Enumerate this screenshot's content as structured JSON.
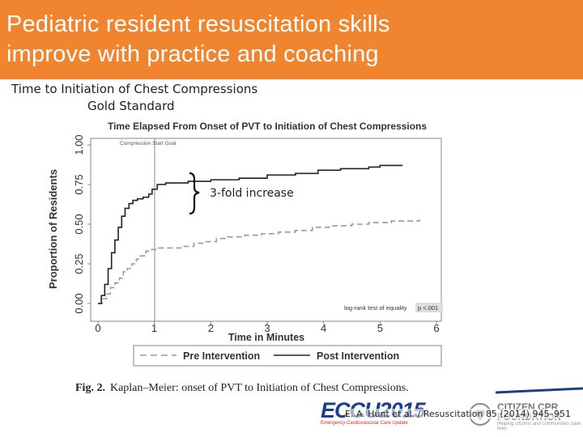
{
  "slide": {
    "title_line1": "Pediatric resident resuscitation skills",
    "title_line2": "improve with practice and coaching",
    "subtitle_line1": "Time to Initiation of Chest Compressions",
    "subtitle_line2": "Gold Standard",
    "annotation": "3-fold increase",
    "caption_label": "Fig. 2.",
    "caption_text": "Kaplan–Meier: onset of PVT to Initiation of Chest Compressions.",
    "citation": "E. A. Hunt et al. / Resuscitation 85 (2014) 945–951",
    "logo_ecc": "ECCU2015",
    "logo_ecc_sub": "Emergency Cardiovascular Care Update",
    "logo_cpr_line1": "CITIZEN CPR",
    "logo_cpr_line2": "FOUNDATION",
    "logo_cpr_sub": "Helping citizens and communities save lives",
    "colors": {
      "title_bar": "#f0842f",
      "title_text": "#ffffff"
    }
  },
  "chart_data": {
    "type": "line",
    "title": "Time Elapsed From Onset of PVT to Initiation of Chest Compressions",
    "xlabel": "Time in Minutes",
    "ylabel": "Proportion of Residents",
    "xlim": [
      0,
      6
    ],
    "ylim": [
      0,
      1
    ],
    "x_ticks": [
      "0",
      "1",
      "2",
      "3",
      "4",
      "5",
      "6"
    ],
    "y_ticks": [
      "0.00",
      "0.25",
      "0.50",
      "0.75",
      "1.00"
    ],
    "reference_line": {
      "x": 1,
      "label": "Compression Start Goal"
    },
    "stat_label": "log-rank test of equality",
    "stat_value": "p <.001",
    "legend_position": "bottom",
    "series": [
      {
        "name": "Pre Intervention",
        "style": "dashed",
        "color": "#9a9a9a",
        "points": [
          [
            0.0,
            0.0
          ],
          [
            0.08,
            0.03
          ],
          [
            0.15,
            0.06
          ],
          [
            0.22,
            0.1
          ],
          [
            0.3,
            0.13
          ],
          [
            0.38,
            0.16
          ],
          [
            0.45,
            0.2
          ],
          [
            0.52,
            0.22
          ],
          [
            0.6,
            0.25
          ],
          [
            0.68,
            0.28
          ],
          [
            0.75,
            0.3
          ],
          [
            0.85,
            0.33
          ],
          [
            0.95,
            0.34
          ],
          [
            1.05,
            0.35
          ],
          [
            1.3,
            0.35
          ],
          [
            1.5,
            0.36
          ],
          [
            1.7,
            0.38
          ],
          [
            1.9,
            0.39
          ],
          [
            2.1,
            0.41
          ],
          [
            2.3,
            0.42
          ],
          [
            2.6,
            0.43
          ],
          [
            2.9,
            0.44
          ],
          [
            3.2,
            0.45
          ],
          [
            3.5,
            0.46
          ],
          [
            3.8,
            0.48
          ],
          [
            4.1,
            0.49
          ],
          [
            4.5,
            0.5
          ],
          [
            4.8,
            0.51
          ],
          [
            5.2,
            0.52
          ],
          [
            5.7,
            0.53
          ],
          [
            5.7,
            0.53
          ]
        ]
      },
      {
        "name": "Post Intervention",
        "style": "solid",
        "color": "#222222",
        "points": [
          [
            0.0,
            0.0
          ],
          [
            0.06,
            0.05
          ],
          [
            0.12,
            0.12
          ],
          [
            0.18,
            0.22
          ],
          [
            0.24,
            0.32
          ],
          [
            0.3,
            0.4
          ],
          [
            0.36,
            0.48
          ],
          [
            0.42,
            0.55
          ],
          [
            0.48,
            0.6
          ],
          [
            0.55,
            0.63
          ],
          [
            0.62,
            0.65
          ],
          [
            0.7,
            0.66
          ],
          [
            0.8,
            0.67
          ],
          [
            0.9,
            0.69
          ],
          [
            0.96,
            0.72
          ],
          [
            1.05,
            0.75
          ],
          [
            1.2,
            0.76
          ],
          [
            1.6,
            0.77
          ],
          [
            2.0,
            0.78
          ],
          [
            2.5,
            0.79
          ],
          [
            3.0,
            0.81
          ],
          [
            3.5,
            0.82
          ],
          [
            3.9,
            0.84
          ],
          [
            4.3,
            0.85
          ],
          [
            4.8,
            0.86
          ],
          [
            5.0,
            0.87
          ],
          [
            5.4,
            0.87
          ]
        ]
      }
    ]
  }
}
